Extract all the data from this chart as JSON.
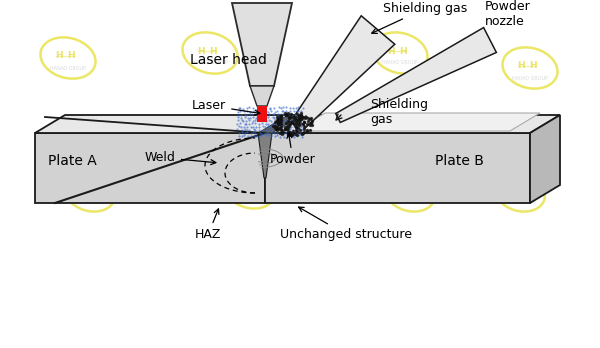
{
  "background_color": "#ffffff",
  "labels": {
    "laser_head": "Laser head",
    "shielding_gas_top": "Shielding gas",
    "powder_nozzle": "Powder\nnozzle",
    "plate_a": "Plate A",
    "plate_b": "Plate B",
    "laser": "Laser",
    "shielding_gas": "Shielding\ngas",
    "weld": "Weld",
    "powder": "Powder",
    "haz": "HAZ",
    "unchanged": "Unchanged structure"
  },
  "watermark_color": "#e8e040",
  "font_size_label": 9
}
